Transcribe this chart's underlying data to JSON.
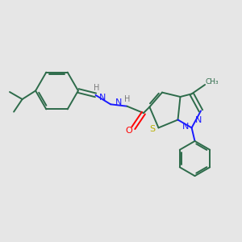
{
  "bg_color": "#e6e6e6",
  "bond_color": "#2d6b4a",
  "N_color": "#1a1aff",
  "O_color": "#ff0000",
  "S_color": "#b8b000",
  "H_color": "#7a7a7a",
  "figsize": [
    3.0,
    3.0
  ],
  "dpi": 100,
  "xlim": [
    0,
    10
  ],
  "ylim": [
    0,
    10
  ]
}
